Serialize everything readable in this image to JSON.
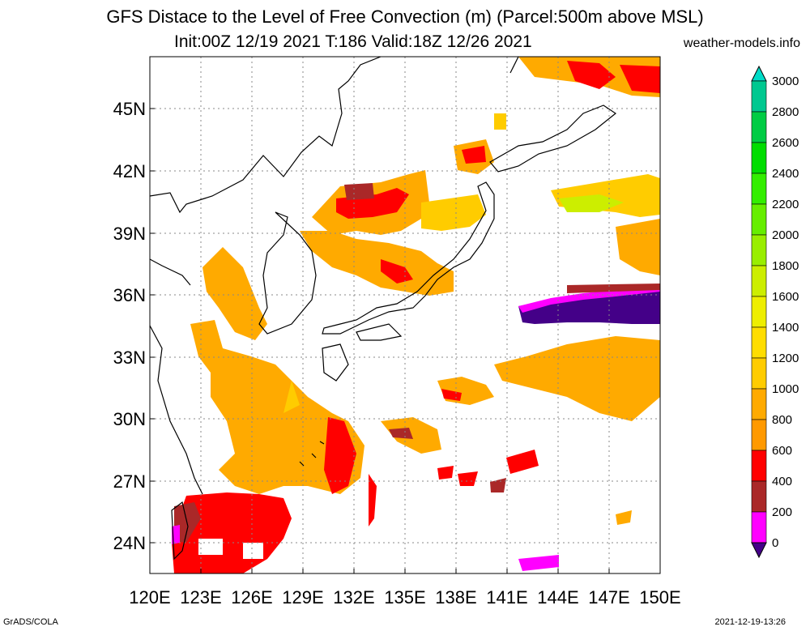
{
  "title": "GFS Distace to the Level of Free Convection (m) (Parcel:500m above MSL)",
  "subtitle": "Init:00Z 12/19 2021 T:186 Valid:18Z 12/26 2021",
  "site": "weather-models.info",
  "footer_left": "GrADS/COLA",
  "footer_right": "2021-12-19-13:26",
  "lat_labels": [
    "45N",
    "42N",
    "39N",
    "36N",
    "33N",
    "30N",
    "27N",
    "24N"
  ],
  "lon_labels": [
    "120E",
    "123E",
    "126E",
    "129E",
    "132E",
    "135E",
    "138E",
    "141E",
    "144E",
    "147E",
    "150E"
  ],
  "colorbar": {
    "labels": [
      "3000",
      "2800",
      "2600",
      "2400",
      "2200",
      "2000",
      "1800",
      "1600",
      "1400",
      "1200",
      "1000",
      "800",
      "600",
      "400",
      "200",
      "0"
    ],
    "colors": [
      "#00dcc8",
      "#00c890",
      "#00cc44",
      "#00dd00",
      "#33ee00",
      "#66ee00",
      "#99ee00",
      "#ccee00",
      "#eeee00",
      "#ffdd00",
      "#ffcc00",
      "#ffaa00",
      "#ff9900",
      "#ff0000",
      "#aa2828",
      "#ff00ff",
      "#6600cc",
      "#440088"
    ]
  }
}
